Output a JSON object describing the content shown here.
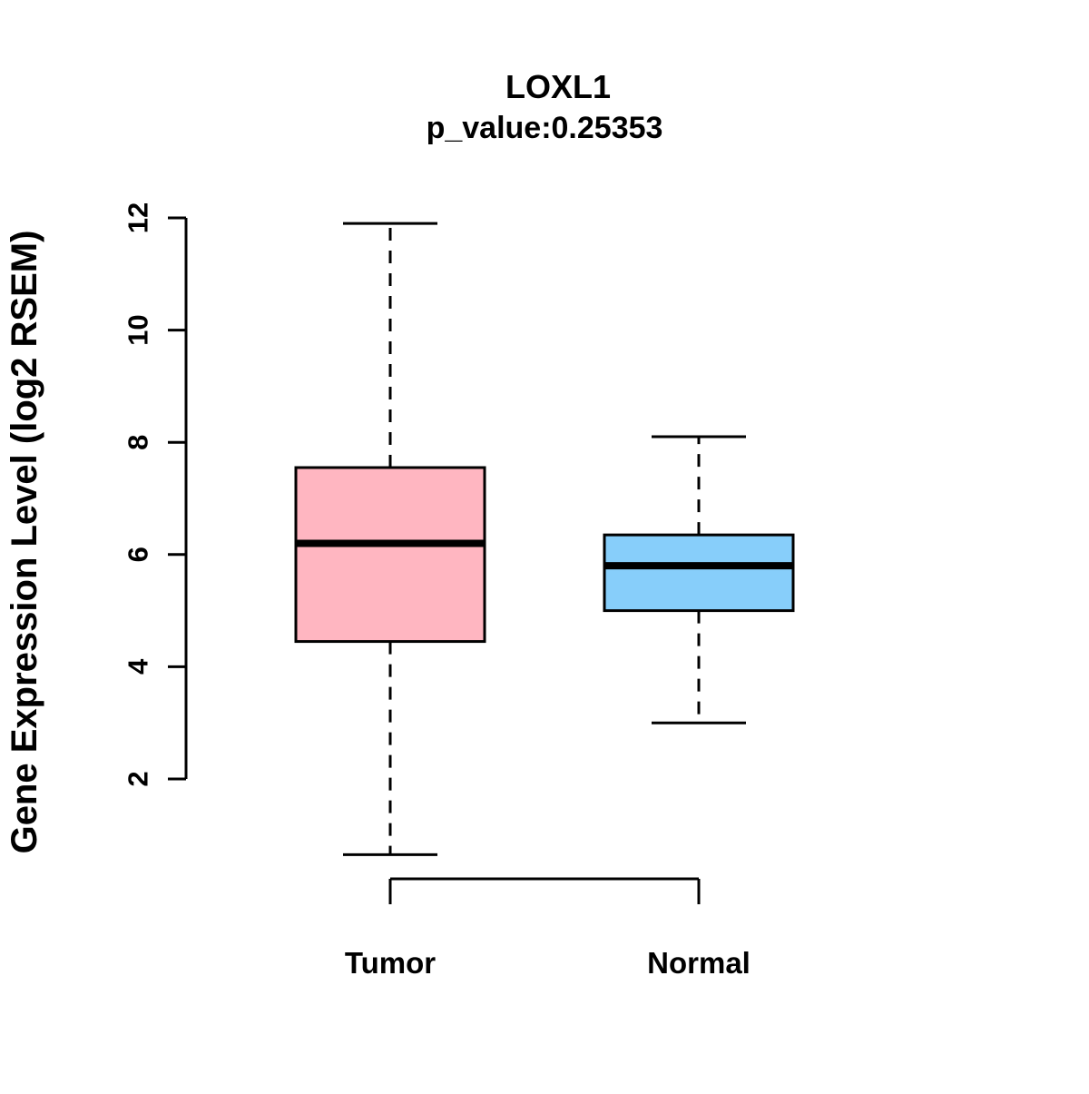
{
  "figure": {
    "background": "#FFFFFF"
  },
  "chart_data": {
    "type": "boxplot",
    "title": "LOXL1",
    "subtitle": "p_value:0.25353",
    "ylabel": "Gene Expression Level (log2 RSEM)",
    "xlabel": "",
    "categories": [
      "Tumor",
      "Normal"
    ],
    "ylim": [
      2,
      12
    ],
    "yticks": [
      2,
      4,
      6,
      8,
      10,
      12
    ],
    "grid": false,
    "legend": "none",
    "whisker_style": "dashed",
    "series": [
      {
        "name": "Tumor",
        "color": "#FFB6C1",
        "whisker_low": 0.65,
        "q1": 4.45,
        "median": 6.2,
        "q3": 7.55,
        "whisker_high": 11.9
      },
      {
        "name": "Normal",
        "color": "#87CEFA",
        "whisker_low": 3.0,
        "q1": 5.0,
        "median": 5.8,
        "q3": 6.35,
        "whisker_high": 8.1
      }
    ],
    "colors": {
      "tumor_box": "#FFB6C1",
      "normal_box": "#87CEFA",
      "stroke": "#000000",
      "background": "#FFFFFF"
    }
  }
}
